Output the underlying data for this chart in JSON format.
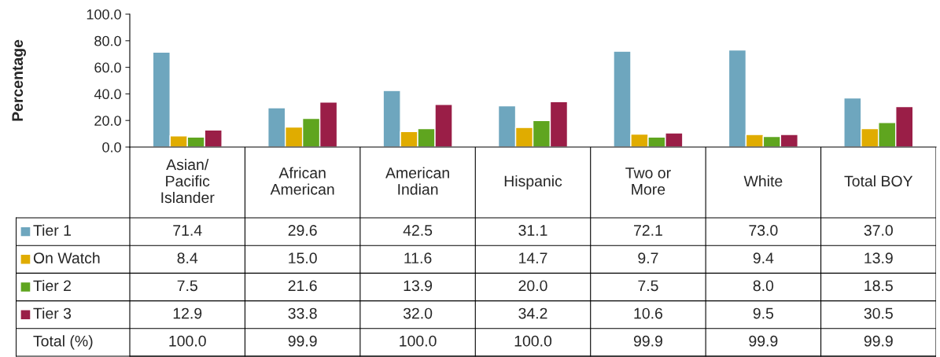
{
  "chart_data": {
    "type": "bar",
    "ylabel": "Percentage",
    "categories": [
      "Asian/\nPacific\nIslander",
      "African\nAmerican",
      "American\nIndian",
      "Hispanic",
      "Two or\nMore",
      "White",
      "Total BOY"
    ],
    "series": [
      {
        "name": "Tier 1",
        "color": "#6ea6be",
        "values": [
          71.4,
          29.6,
          42.5,
          31.1,
          72.1,
          73.0,
          37.0
        ],
        "value_labels": [
          "71.4",
          "29.6",
          "42.5",
          "31.1",
          "72.1",
          "73.0",
          "37.0"
        ]
      },
      {
        "name": "On Watch",
        "color": "#e0ac00",
        "values": [
          8.4,
          15.0,
          11.6,
          14.7,
          9.7,
          9.4,
          13.9
        ],
        "value_labels": [
          "8.4",
          "15.0",
          "11.6",
          "14.7",
          "9.7",
          "9.4",
          "13.9"
        ]
      },
      {
        "name": "Tier 2",
        "color": "#5fa51f",
        "values": [
          7.5,
          21.6,
          13.9,
          20.0,
          7.5,
          8.0,
          18.5
        ],
        "value_labels": [
          "7.5",
          "21.6",
          "13.9",
          "20.0",
          "7.5",
          "8.0",
          "18.5"
        ]
      },
      {
        "name": "Tier 3",
        "color": "#9a1e47",
        "values": [
          12.9,
          33.8,
          32.0,
          34.2,
          10.6,
          9.5,
          30.5
        ],
        "value_labels": [
          "12.9",
          "33.8",
          "32.0",
          "34.2",
          "10.6",
          "9.5",
          "30.5"
        ]
      }
    ],
    "ylim": [
      0,
      100
    ],
    "yticks": [
      {
        "value": 0,
        "label": "0.0"
      },
      {
        "value": 20,
        "label": "20.0"
      },
      {
        "value": 40,
        "label": "40.0"
      },
      {
        "value": 60,
        "label": "60.0"
      },
      {
        "value": 80,
        "label": "80.0"
      },
      {
        "value": 100,
        "label": "100.0"
      }
    ],
    "legend": "bottom left",
    "annotations": [
      "Total (%)",
      "100.0",
      "99.9",
      "100.0",
      "100.0",
      "99.9",
      "99.9",
      "99.9"
    ],
    "grid": false
  }
}
